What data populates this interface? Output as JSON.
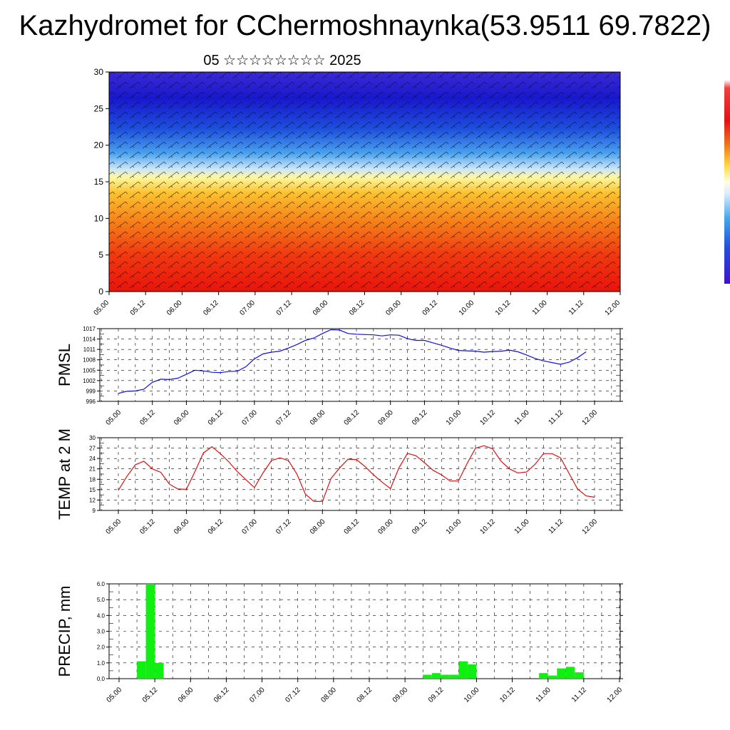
{
  "header": {
    "title": "Kazhydromet for CChermoshnaynka(53.9511 69.7822)",
    "subtitle": "05 ☆☆☆☆☆☆☆☆ 2025"
  },
  "colors": {
    "pmsl_line": "#1010e0",
    "temp_line": "#e01010",
    "precip_bar": "#11ee11",
    "cross_section_high": "#e81010",
    "cross_section_mid": "#ffe040",
    "cross_section_low": "#1010d0"
  },
  "chart_data": [
    {
      "type": "heatmap",
      "name": "cross-section",
      "ylim": [
        0,
        30
      ],
      "y_ticks": [
        "0",
        "5",
        "10",
        "15",
        "20",
        "25",
        "30"
      ],
      "x_ticks": [
        "05.00",
        "05.12",
        "06.00",
        "06.12",
        "07.00",
        "07.12",
        "08.00",
        "08.12",
        "09.00",
        "09.12",
        "10.00",
        "10.12",
        "11.00",
        "11.12",
        "12.00"
      ]
    },
    {
      "type": "line",
      "name": "pmsl",
      "ylabel": "PMSL",
      "ylim": [
        996,
        1017
      ],
      "y_ticks": [
        "996",
        "999",
        "1002",
        "1005",
        "1008",
        "1011",
        "1014",
        "1017"
      ],
      "x_ticks": [
        "05.00",
        "05.12",
        "06.00",
        "06.12",
        "07.00",
        "07.12",
        "08.00",
        "08.12",
        "09.00",
        "09.12",
        "10.00",
        "10.12",
        "11.00",
        "11.12",
        "12.00"
      ],
      "x_hours": [
        0,
        3,
        6,
        9,
        12,
        15,
        18,
        21,
        24,
        27,
        30,
        33,
        36,
        39,
        42,
        45,
        48,
        51,
        54,
        57,
        60,
        63,
        66,
        69,
        72,
        75,
        78,
        81,
        84,
        87,
        90,
        93,
        96,
        99,
        102,
        105,
        108,
        111,
        114,
        117,
        120,
        123,
        126,
        129,
        132,
        135,
        138,
        141,
        144,
        147,
        150,
        153,
        156,
        159,
        162,
        165
      ],
      "values": [
        998.3,
        998.9,
        999.0,
        999.5,
        1001.5,
        1002.4,
        1002.3,
        1002.7,
        1003.8,
        1005.0,
        1004.8,
        1004.4,
        1004.3,
        1004.6,
        1004.7,
        1006.0,
        1008.3,
        1009.7,
        1010.2,
        1010.5,
        1011.4,
        1012.4,
        1013.6,
        1014.3,
        1015.6,
        1016.7,
        1016.6,
        1015.6,
        1015.4,
        1015.3,
        1015.2,
        1014.9,
        1015.2,
        1015.1,
        1014.1,
        1013.6,
        1013.6,
        1012.9,
        1012.2,
        1011.4,
        1010.7,
        1010.6,
        1010.5,
        1010.2,
        1010.4,
        1010.5,
        1010.8,
        1010.3,
        1009.4,
        1008.4,
        1007.7,
        1007.2,
        1006.7,
        1007.3,
        1008.6,
        1010.3
      ]
    },
    {
      "type": "line",
      "name": "temp",
      "ylabel": "TEMP at 2 M",
      "ylim": [
        9,
        30
      ],
      "y_ticks": [
        "9",
        "12",
        "15",
        "18",
        "21",
        "24",
        "27",
        "30"
      ],
      "x_ticks": [
        "05.00",
        "05.12",
        "06.00",
        "06.12",
        "07.00",
        "07.12",
        "08.00",
        "08.12",
        "09.00",
        "09.12",
        "10.00",
        "10.12",
        "11.00",
        "11.12",
        "12.00"
      ],
      "x_hours": [
        0,
        3,
        6,
        9,
        12,
        15,
        18,
        21,
        24,
        27,
        30,
        33,
        36,
        39,
        42,
        45,
        48,
        51,
        54,
        57,
        60,
        63,
        66,
        69,
        72,
        75,
        78,
        81,
        84,
        87,
        90,
        93,
        96,
        99,
        102,
        105,
        108,
        111,
        114,
        117,
        120,
        123,
        126,
        129,
        132,
        135,
        138,
        141,
        144,
        147,
        150,
        153,
        156,
        159,
        162,
        165,
        168
      ],
      "values": [
        14.8,
        18.8,
        22.2,
        23.2,
        21.0,
        20.0,
        16.6,
        15.2,
        15.1,
        20.2,
        25.6,
        27.4,
        25.4,
        23.0,
        20.2,
        17.9,
        15.6,
        19.8,
        23.4,
        24.2,
        23.4,
        19.5,
        13.7,
        11.6,
        11.6,
        18.2,
        21.2,
        23.8,
        23.7,
        21.7,
        19.3,
        17.2,
        15.3,
        21.3,
        25.5,
        24.8,
        22.8,
        20.6,
        19.3,
        17.5,
        17.5,
        22.5,
        27.0,
        27.7,
        26.8,
        23.2,
        21.0,
        19.8,
        20.1,
        22.3,
        25.4,
        25.4,
        24.2,
        19.7,
        15.2,
        13.2,
        12.8
      ]
    },
    {
      "type": "bar",
      "name": "precip",
      "ylabel": "PRECIP, mm",
      "ylim": [
        0,
        6
      ],
      "y_ticks": [
        "0.0",
        "1.0",
        "2.0",
        "3.0",
        "4.0",
        "5.0",
        "6.0"
      ],
      "x_ticks": [
        "05.00",
        "05.12",
        "06.00",
        "06.12",
        "07.00",
        "07.12",
        "08.00",
        "08.12",
        "09.00",
        "09.12",
        "10.00",
        "10.12",
        "11.00",
        "11.12",
        "12.00"
      ],
      "bars": [
        {
          "start": 6,
          "end": 9,
          "value": 1.1
        },
        {
          "start": 9,
          "end": 12,
          "value": 6.0
        },
        {
          "start": 12,
          "end": 15,
          "value": 1.0
        },
        {
          "start": 102,
          "end": 105,
          "value": 0.25
        },
        {
          "start": 105,
          "end": 108,
          "value": 0.35
        },
        {
          "start": 108,
          "end": 111,
          "value": 0.25
        },
        {
          "start": 111,
          "end": 114,
          "value": 0.25
        },
        {
          "start": 114,
          "end": 117,
          "value": 1.1
        },
        {
          "start": 117,
          "end": 120,
          "value": 0.9
        },
        {
          "start": 141,
          "end": 144,
          "value": 0.35
        },
        {
          "start": 144,
          "end": 147,
          "value": 0.2
        },
        {
          "start": 147,
          "end": 150,
          "value": 0.65
        },
        {
          "start": 150,
          "end": 153,
          "value": 0.75
        },
        {
          "start": 153,
          "end": 156,
          "value": 0.4
        }
      ]
    }
  ]
}
